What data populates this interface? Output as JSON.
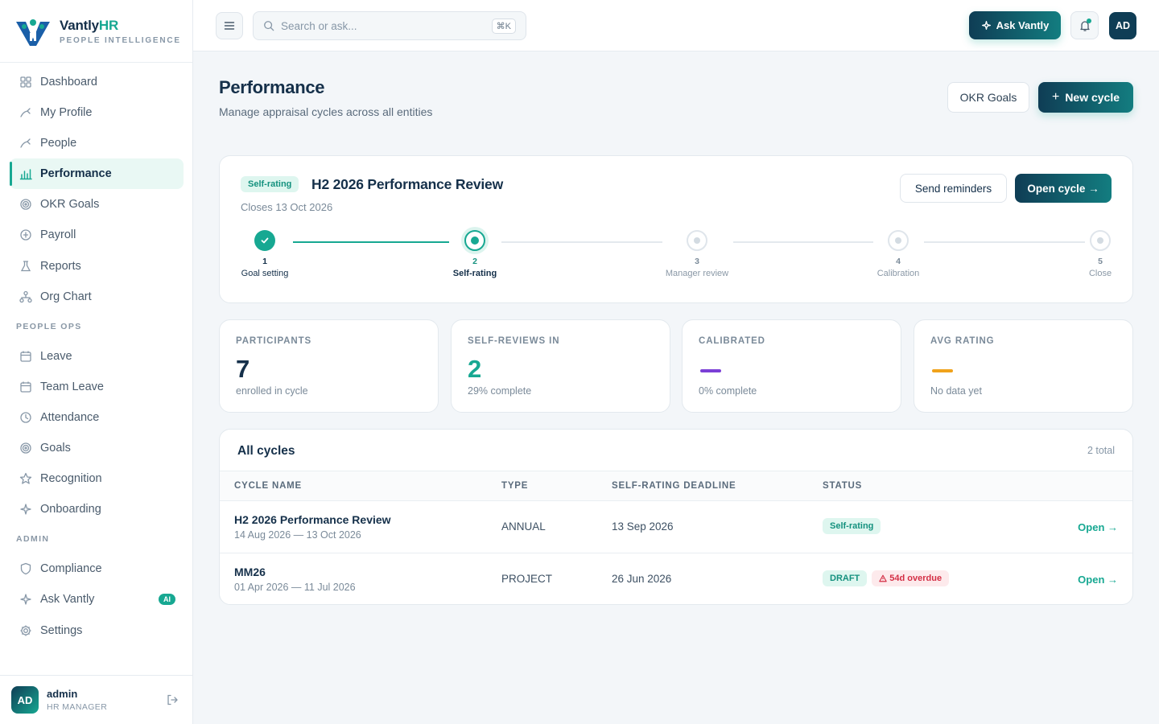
{
  "brand": {
    "name_main": "Vantly",
    "name_accent": "HR",
    "subtitle": "PEOPLE INTELLIGENCE"
  },
  "sidebar": {
    "items": [
      {
        "label": "Dashboard",
        "icon": "grid-icon"
      },
      {
        "label": "My Profile",
        "icon": "user-icon"
      },
      {
        "label": "People",
        "icon": "users-icon"
      },
      {
        "label": "Performance",
        "icon": "bar-chart-icon",
        "active": true
      },
      {
        "label": "OKR Goals",
        "icon": "target-icon"
      },
      {
        "label": "Payroll",
        "icon": "coin-icon"
      },
      {
        "label": "Reports",
        "icon": "flask-icon"
      },
      {
        "label": "Org Chart",
        "icon": "org-chart-icon"
      }
    ],
    "section_people_ops": "PEOPLE OPS",
    "people_ops": [
      {
        "label": "Leave",
        "icon": "calendar-icon"
      },
      {
        "label": "Team Leave",
        "icon": "calendar-icon"
      },
      {
        "label": "Attendance",
        "icon": "clock-icon"
      },
      {
        "label": "Goals",
        "icon": "target-icon"
      },
      {
        "label": "Recognition",
        "icon": "star-icon"
      },
      {
        "label": "Onboarding",
        "icon": "sparkle-icon"
      }
    ],
    "section_admin": "ADMIN",
    "admin": [
      {
        "label": "Compliance",
        "icon": "shield-icon"
      },
      {
        "label": "Ask Vantly",
        "icon": "sparkle-icon",
        "badge": "AI"
      },
      {
        "label": "Settings",
        "icon": "gear-icon"
      }
    ]
  },
  "user": {
    "initials": "AD",
    "name": "admin",
    "role": "HR MANAGER"
  },
  "topbar": {
    "search_placeholder": "Search or ask...",
    "shortcut": "⌘K",
    "ask_label": "Ask Vantly",
    "avatar_initials": "AD"
  },
  "page": {
    "title": "Performance",
    "subtitle": "Manage appraisal cycles across all entities",
    "okr_button": "OKR Goals",
    "new_cycle_button": "New cycle"
  },
  "current_cycle": {
    "status": "Self-rating",
    "name": "H2 2026 Performance Review",
    "closes": "Closes 13 Oct 2026",
    "send_reminders": "Send reminders",
    "open_cycle": "Open cycle →",
    "steps": [
      {
        "num": "1",
        "label": "Goal setting",
        "state": "done"
      },
      {
        "num": "2",
        "label": "Self-rating",
        "state": "current"
      },
      {
        "num": "3",
        "label": "Manager review",
        "state": "todo"
      },
      {
        "num": "4",
        "label": "Calibration",
        "state": "todo"
      },
      {
        "num": "5",
        "label": "Close",
        "state": "todo"
      }
    ]
  },
  "stats": [
    {
      "label": "PARTICIPANTS",
      "value": "7",
      "sub": "enrolled in cycle",
      "color": "#15304a"
    },
    {
      "label": "SELF-REVIEWS IN",
      "value": "2",
      "sub": "29% complete",
      "color": "#17a892"
    },
    {
      "label": "CALIBRATED",
      "value": "",
      "sub": "0% complete",
      "color": "#7b3fd6"
    },
    {
      "label": "AVG RATING",
      "value": "",
      "sub": "No data yet",
      "color": "#f0a21b"
    }
  ],
  "table": {
    "title": "All cycles",
    "total": "2 total",
    "columns": [
      "CYCLE NAME",
      "TYPE",
      "SELF-RATING DEADLINE",
      "STATUS"
    ],
    "rows": [
      {
        "name": "H2 2026 Performance Review",
        "dates": "14 Aug 2026 — 13 Oct 2026",
        "type": "ANNUAL",
        "deadline": "13 Sep 2026",
        "status": "Self-rating",
        "overdue": "",
        "action": "Open →"
      },
      {
        "name": "MM26",
        "dates": "01 Apr 2026 — 11 Jul 2026",
        "type": "PROJECT",
        "deadline": "26 Jun 2026",
        "status": "DRAFT",
        "overdue": "54d overdue",
        "action": "Open →"
      }
    ]
  }
}
